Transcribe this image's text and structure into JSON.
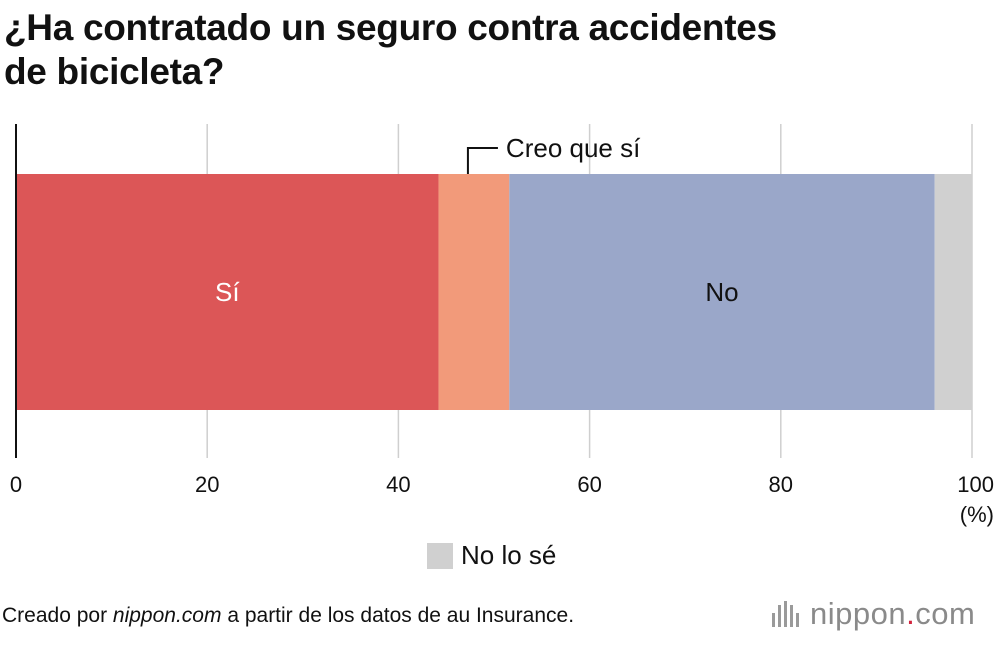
{
  "title_lines": [
    "¿Ha contratado un seguro contra accidentes",
    "de bicicleta?"
  ],
  "chart_data": {
    "type": "bar",
    "orientation": "horizontal",
    "stacked": true,
    "categories": [
      ""
    ],
    "series": [
      {
        "name": "Sí",
        "values": [
          44.2
        ],
        "color": "#dc5657",
        "label": "Sí",
        "label_color": "#ffffff"
      },
      {
        "name": "Creo que sí",
        "values": [
          7.4
        ],
        "color": "#f29a7a",
        "label": "Creo que sí",
        "label_color": "#111111",
        "callout": true
      },
      {
        "name": "No",
        "values": [
          44.5
        ],
        "color": "#9aa7c9",
        "label": "No",
        "label_color": "#111111"
      },
      {
        "name": "No lo sé",
        "values": [
          3.9
        ],
        "color": "#d0d0d0",
        "label": "No lo sé",
        "label_color": "#111111"
      }
    ],
    "xlim": [
      0,
      100
    ],
    "x_ticks": [
      "0",
      "20",
      "40",
      "60",
      "80",
      "100"
    ],
    "x_unit": "(%)",
    "grid": true
  },
  "legend": {
    "label": "No lo sé",
    "color": "#d0d0d0"
  },
  "footer": {
    "source_prefix": "Creado por ",
    "source_site": "nippon.com",
    "source_suffix": " a partir de los datos de au Insurance.",
    "logo_word": "nippon",
    "logo_dot": ".",
    "logo_tld": "com"
  }
}
